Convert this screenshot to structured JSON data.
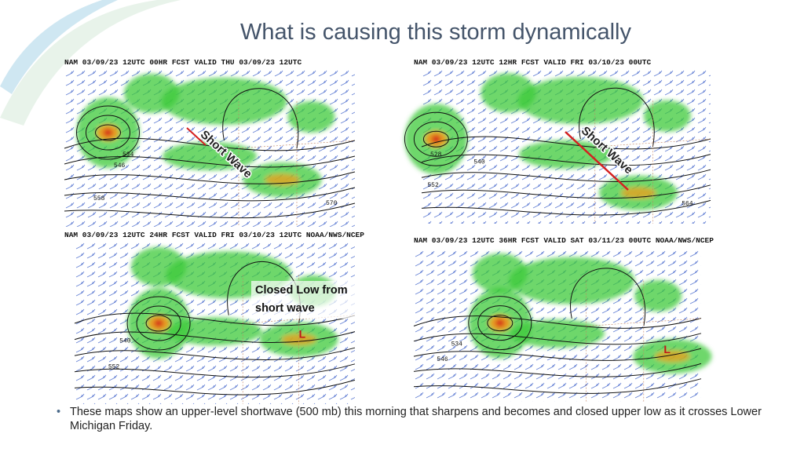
{
  "title": "What is causing this storm dynamically",
  "maps": [
    {
      "header": "NAM 03/09/23 12UTC 00HR FCST VALID THU 03/09/23 12UTC",
      "annotation": [
        "Short Wave"
      ],
      "labels": [
        "534",
        "546",
        "558",
        "570"
      ]
    },
    {
      "header": "NAM 03/09/23 12UTC 12HR FCST VALID FRI 03/10/23 00UTC",
      "annotation": [
        "Short Wave"
      ],
      "labels": [
        "528",
        "540",
        "552",
        "564"
      ]
    },
    {
      "header": "NAM 03/09/23 12UTC 24HR FCST VALID FRI 03/10/23 12UTC NOAA/NWS/NCEP",
      "annotation": [
        "Closed Low from",
        "short wave"
      ],
      "labels": [
        "540",
        "552",
        "L"
      ]
    },
    {
      "header": "NAM 03/09/23 12UTC 36HR FCST VALID SAT 03/11/23 00UTC NOAA/NWS/NCEP",
      "annotation": [],
      "labels": [
        "534",
        "546",
        "L"
      ]
    }
  ],
  "bullets": [
    "These maps show an upper-level shortwave (500 mb) this morning that sharpens and becomes and closed upper low as it crosses Lower Michigan Friday."
  ]
}
